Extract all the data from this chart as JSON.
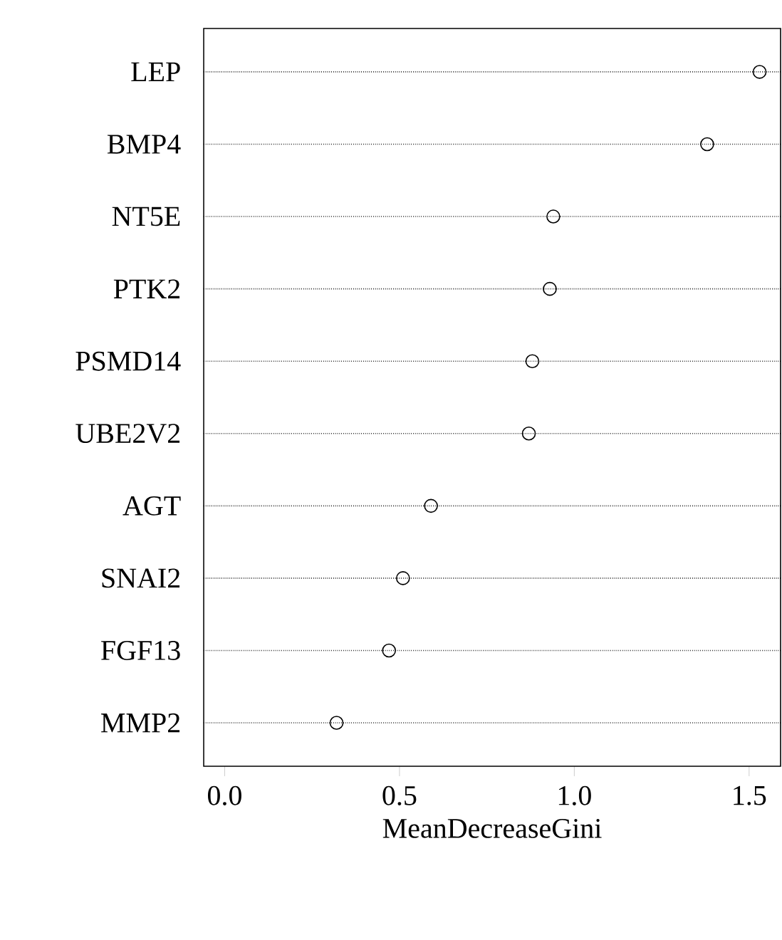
{
  "chart_data": {
    "type": "scatter",
    "orientation": "horizontal",
    "xlabel": "MeanDecreaseGini",
    "categories": [
      "LEP",
      "BMP4",
      "NT5E",
      "PTK2",
      "PSMD14",
      "UBE2V2",
      "AGT",
      "SNAI2",
      "FGF13",
      "MMP2"
    ],
    "values": [
      1.53,
      1.38,
      0.94,
      0.93,
      0.88,
      0.87,
      0.59,
      0.51,
      0.47,
      0.32
    ],
    "color": "#000000",
    "marker": "circle",
    "grid": "y",
    "xlim": [
      -0.06,
      1.59
    ],
    "xticks": [
      {
        "value": 0,
        "label": "0.0"
      },
      0.5,
      {
        "value": 1,
        "label": "1.0"
      },
      1.5
    ]
  }
}
